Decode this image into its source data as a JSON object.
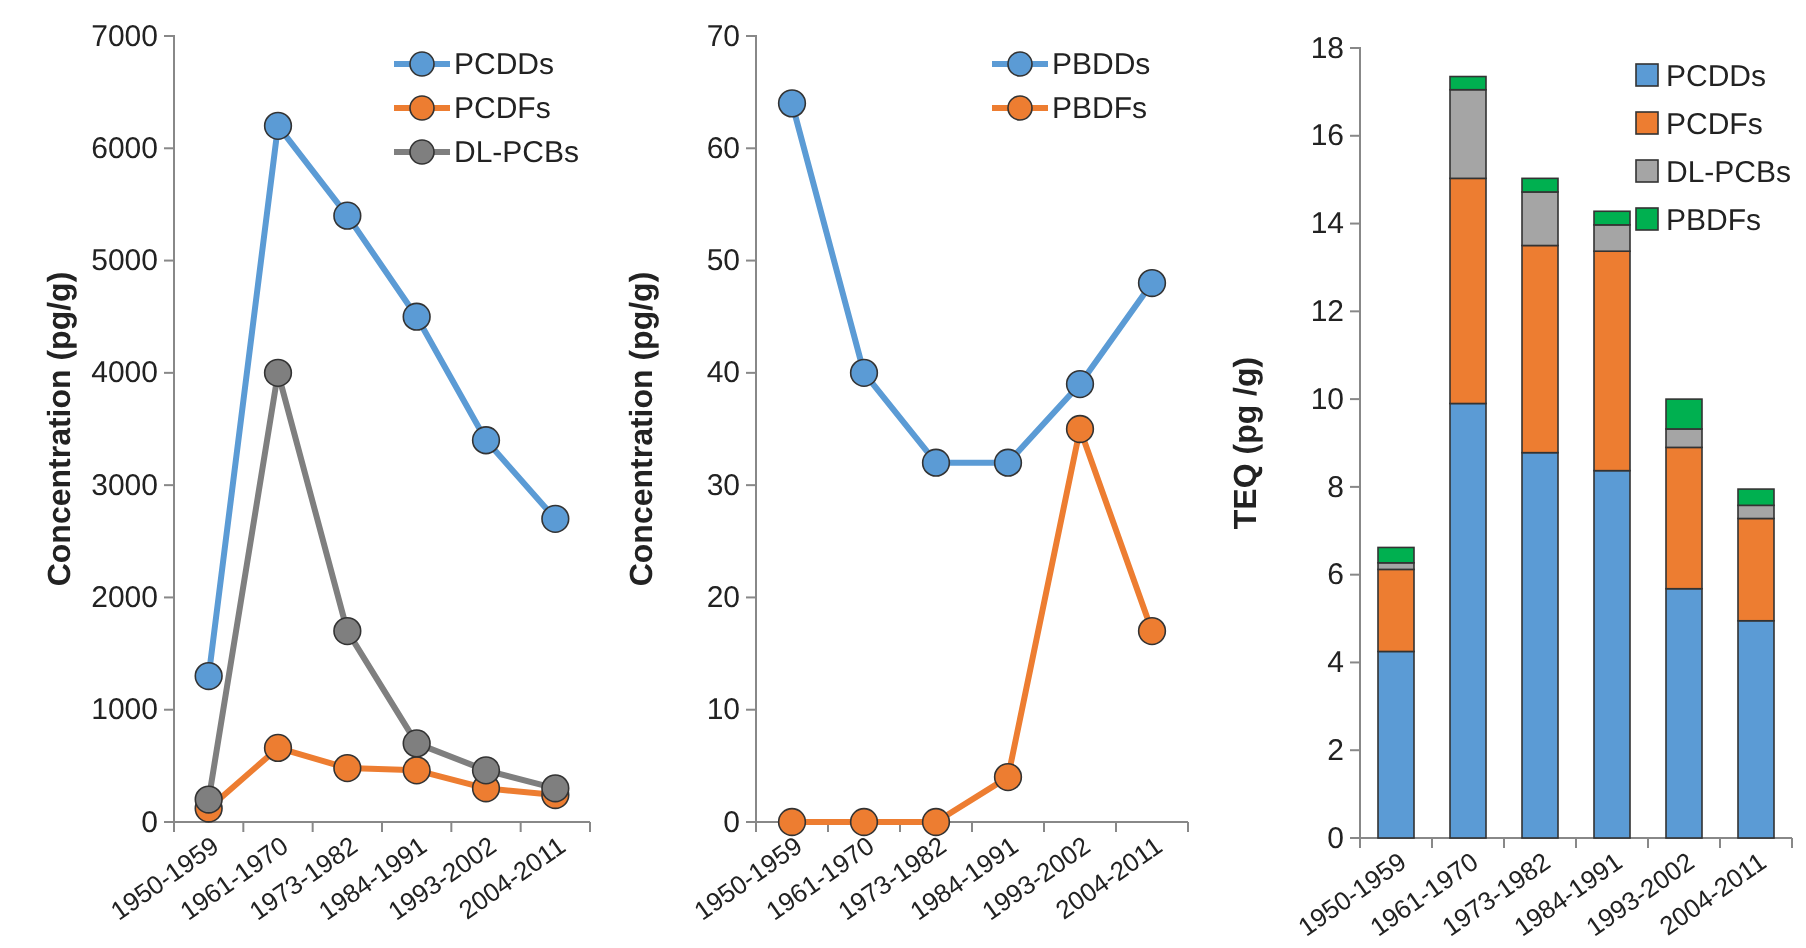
{
  "chart_data": [
    {
      "type": "line",
      "ylabel": "Concentration (pg/g)",
      "categories": [
        "1950-1959",
        "1961-1970",
        "1973-1982",
        "1984-1991",
        "1993-2002",
        "2004-2011"
      ],
      "ylim": [
        0,
        7000
      ],
      "yticks": [
        0,
        1000,
        2000,
        3000,
        4000,
        5000,
        6000,
        7000
      ],
      "legend": "top right",
      "marker": "circle",
      "grid": false,
      "series": [
        {
          "name": "PCDDs",
          "color": "#5b9bd5",
          "values": [
            1300,
            6200,
            5400,
            4500,
            3400,
            2700
          ]
        },
        {
          "name": "PCDFs",
          "color": "#ed7d31",
          "values": [
            120,
            660,
            480,
            460,
            300,
            240
          ]
        },
        {
          "name": "DL-PCBs",
          "color": "#7f7f7f",
          "values": [
            200,
            4000,
            1700,
            700,
            460,
            300
          ]
        }
      ]
    },
    {
      "type": "line",
      "ylabel": "Concentration (pg/g)",
      "categories": [
        "1950-1959",
        "1961-1970",
        "1973-1982",
        "1984-1991",
        "1993-2002",
        "2004-2011"
      ],
      "ylim": [
        0,
        70
      ],
      "yticks": [
        0,
        10,
        20,
        30,
        40,
        50,
        60,
        70
      ],
      "legend": "top right",
      "marker": "circle",
      "grid": false,
      "series": [
        {
          "name": "PBDDs",
          "color": "#5b9bd5",
          "values": [
            64,
            40,
            32,
            32,
            39,
            48
          ]
        },
        {
          "name": "PBDFs",
          "color": "#ed7d31",
          "values": [
            0,
            0,
            0,
            4,
            35,
            17
          ]
        }
      ]
    },
    {
      "type": "bar",
      "stacked": true,
      "ylabel": "TEQ (pg /g)",
      "categories": [
        "1950-1959",
        "1961-1970",
        "1973-1982",
        "1984-1991",
        "1993-2002",
        "2004-2011"
      ],
      "ylim": [
        0,
        18
      ],
      "yticks": [
        0,
        2,
        4,
        6,
        8,
        10,
        12,
        14,
        16,
        18
      ],
      "legend": "top right",
      "grid": false,
      "series": [
        {
          "name": "PCDDs",
          "color": "#5b9bd5",
          "values": [
            4.25,
            9.9,
            8.78,
            8.37,
            5.68,
            4.95
          ]
        },
        {
          "name": "PCDFs",
          "color": "#ed7d31",
          "values": [
            1.87,
            5.13,
            4.72,
            5.0,
            3.22,
            2.33
          ]
        },
        {
          "name": "DL-PCBs",
          "color": "#a5a5a5",
          "values": [
            0.15,
            2.02,
            1.22,
            0.6,
            0.42,
            0.3
          ]
        },
        {
          "name": "PBDFs",
          "color": "#00b050",
          "values": [
            0.35,
            0.3,
            0.31,
            0.31,
            0.68,
            0.37
          ]
        }
      ]
    }
  ]
}
